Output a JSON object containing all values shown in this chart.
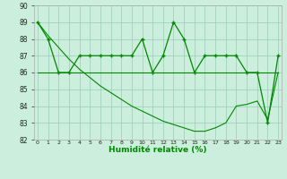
{
  "series1": [
    89,
    88,
    86,
    86,
    87,
    87,
    87,
    87,
    87,
    87,
    88,
    86,
    87,
    89,
    88,
    86,
    87,
    87,
    87,
    87,
    86,
    86,
    83,
    87
  ],
  "series2": [
    86,
    86,
    86,
    86,
    86,
    86,
    86,
    86,
    86,
    86,
    86,
    86,
    86,
    86,
    86,
    86,
    86,
    86,
    86,
    86,
    86,
    86,
    86,
    86
  ],
  "series3": [
    89,
    88.2,
    87.5,
    86.8,
    86.2,
    85.7,
    85.2,
    84.8,
    84.4,
    84.0,
    83.7,
    83.4,
    83.1,
    82.9,
    82.7,
    82.5,
    82.5,
    82.7,
    83.0,
    84.0,
    84.1,
    84.3,
    83.2,
    86.0
  ],
  "x": [
    0,
    1,
    2,
    3,
    4,
    5,
    6,
    7,
    8,
    9,
    10,
    11,
    12,
    13,
    14,
    15,
    16,
    17,
    18,
    19,
    20,
    21,
    22,
    23
  ],
  "xlabel": "Humidité relative (%)",
  "ylim": [
    82,
    90
  ],
  "yticks": [
    82,
    83,
    84,
    85,
    86,
    87,
    88,
    89,
    90
  ],
  "line_color": "#008800",
  "bg_color": "#cceedd",
  "grid_color": "#99ccbb"
}
